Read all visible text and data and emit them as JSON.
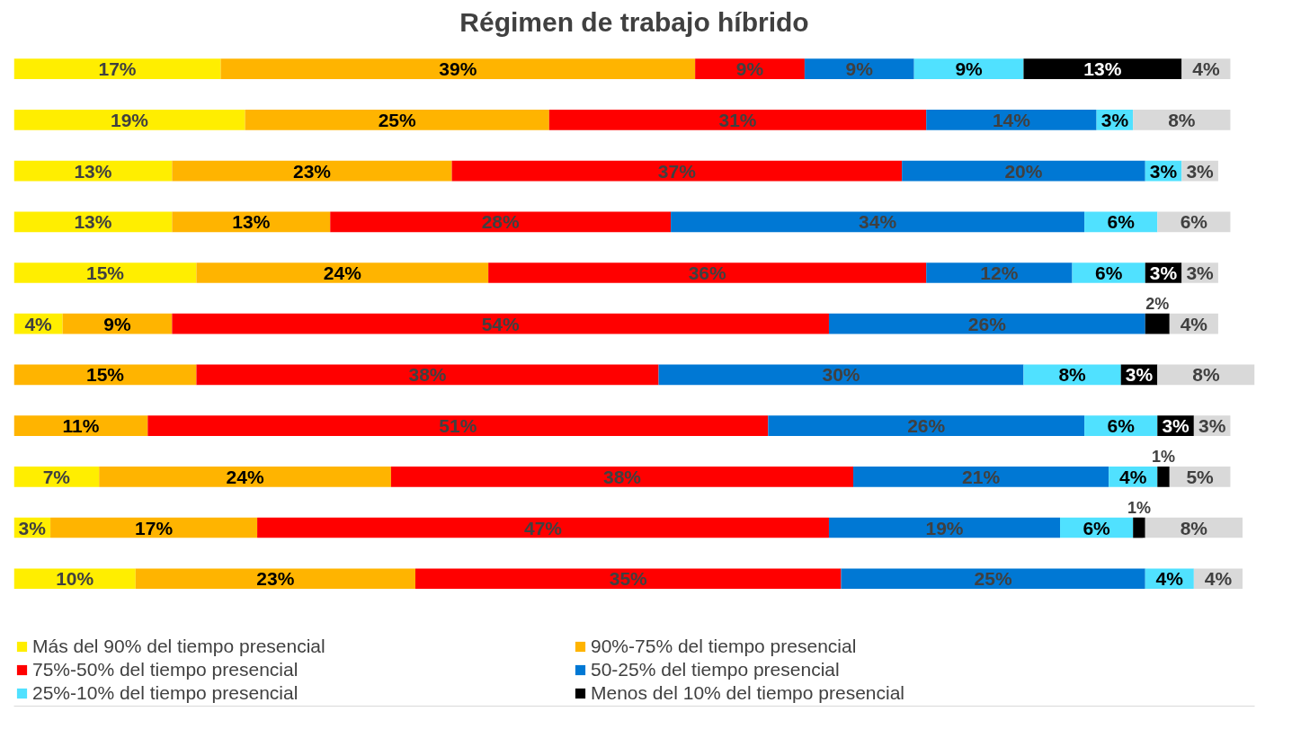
{
  "chart_data": {
    "type": "bar",
    "orientation": "horizontal",
    "stacked": true,
    "title": "Régimen de trabajo híbrido",
    "categories": [
      null,
      null,
      null,
      null,
      null,
      null,
      null,
      null,
      null,
      null,
      null
    ],
    "series": [
      {
        "name": "Más del 90% del tiempo presencial",
        "color": "#ffee00",
        "values": [
          17,
          19,
          13,
          13,
          15,
          4,
          null,
          null,
          7,
          3,
          10
        ],
        "value_labels": [
          "17%",
          "19%",
          "13%",
          "13%",
          "15%",
          "4%",
          null,
          null,
          "7%",
          "3%",
          "10%"
        ]
      },
      {
        "name": "90%-75% del tiempo presencial",
        "color": "#ffb400",
        "values": [
          39,
          25,
          23,
          13,
          24,
          9,
          15,
          11,
          24,
          17,
          23
        ],
        "value_labels": [
          "39%",
          "25%",
          "23%",
          "13%",
          "24%",
          "9%",
          "15%",
          "11%",
          "24%",
          "17%",
          "23%"
        ]
      },
      {
        "name": "75%-50% del tiempo presencial",
        "color": "#ff0000",
        "values": [
          9,
          31,
          37,
          28,
          36,
          54,
          38,
          51,
          38,
          47,
          35
        ],
        "value_labels": [
          "9%",
          "31%",
          "37%",
          "28%",
          "36%",
          "54%",
          "38%",
          "51%",
          "38%",
          "47%",
          "35%"
        ]
      },
      {
        "name": "50-25% del tiempo presencial",
        "color": "#0078d4",
        "values": [
          9,
          14,
          20,
          34,
          12,
          26,
          30,
          26,
          21,
          19,
          25
        ],
        "value_labels": [
          "9%",
          "14%",
          "20%",
          "34%",
          "12%",
          "26%",
          "30%",
          "26%",
          "21%",
          "19%",
          "25%"
        ]
      },
      {
        "name": "25%-10% del tiempo presencial",
        "color": "#50e1ff",
        "values": [
          9,
          3,
          3,
          6,
          6,
          null,
          8,
          6,
          4,
          6,
          4
        ],
        "value_labels": [
          "9%",
          "3%",
          "3%",
          "6%",
          "6%",
          null,
          "8%",
          "6%",
          "4%",
          "6%",
          "4%"
        ]
      },
      {
        "name": "Menos del 10% del tiempo presencial",
        "color": "#000000",
        "values": [
          13,
          null,
          null,
          null,
          3,
          2,
          3,
          3,
          1,
          1,
          null
        ],
        "value_labels": [
          "13%",
          null,
          null,
          null,
          "3%",
          "2%",
          "3%",
          "3%",
          "1%",
          "1%",
          null
        ]
      },
      {
        "color": "#d9d9d9",
        "values": [
          4,
          8,
          3,
          6,
          3,
          4,
          8,
          3,
          5,
          8,
          4
        ],
        "value_labels": [
          "4%",
          "8%",
          "3%",
          "6%",
          "3%",
          "4%",
          "8%",
          "3%",
          "5%",
          "8%",
          "4%"
        ]
      }
    ],
    "legend": "bottom",
    "tick_labels": false
  }
}
